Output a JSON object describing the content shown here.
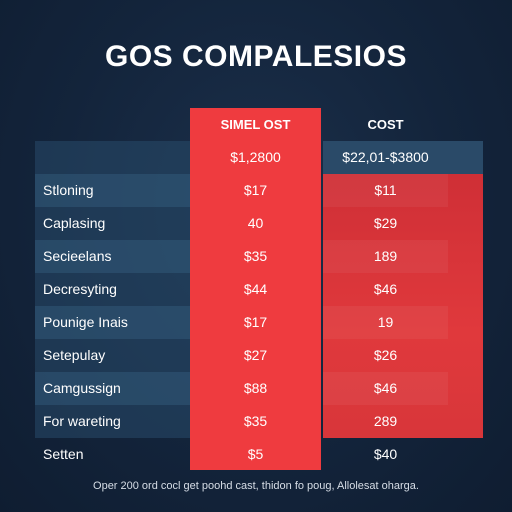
{
  "title": "GOS COMPALESIOS",
  "chart_data": {
    "type": "table",
    "columns": [
      "",
      "SIMEL OST",
      "COST"
    ],
    "price_row": [
      "",
      "$1,2800",
      "$22,01-$3800"
    ],
    "rows": [
      {
        "label": "Stloning",
        "col2": "$17",
        "col3": "$11"
      },
      {
        "label": "Caplasing",
        "col2": "40",
        "col3": "$29"
      },
      {
        "label": "Secieelans",
        "col2": "$35",
        "col3": "189"
      },
      {
        "label": "Decresyting",
        "col2": "$44",
        "col3": "$46"
      },
      {
        "label": "Pounige Inais",
        "col2": "$17",
        "col3": "19"
      },
      {
        "label": "Setepulay",
        "col2": "$27",
        "col3": "$26"
      },
      {
        "label": "Camgussign",
        "col2": "$88",
        "col3": "$46"
      },
      {
        "label": "For wareting",
        "col2": "$35",
        "col3": "289"
      },
      {
        "label": "Setten",
        "col2": "$5",
        "col3": "$40"
      }
    ]
  },
  "footnote": "Oper 200 ord cocl get poohd cast, thidon fo poug, Allolesat oharga.",
  "colors": {
    "background": "#13243b",
    "accent_red": "#ef3b3f",
    "accent_red_dark": "#d8363a",
    "row_band": "#284b69"
  }
}
